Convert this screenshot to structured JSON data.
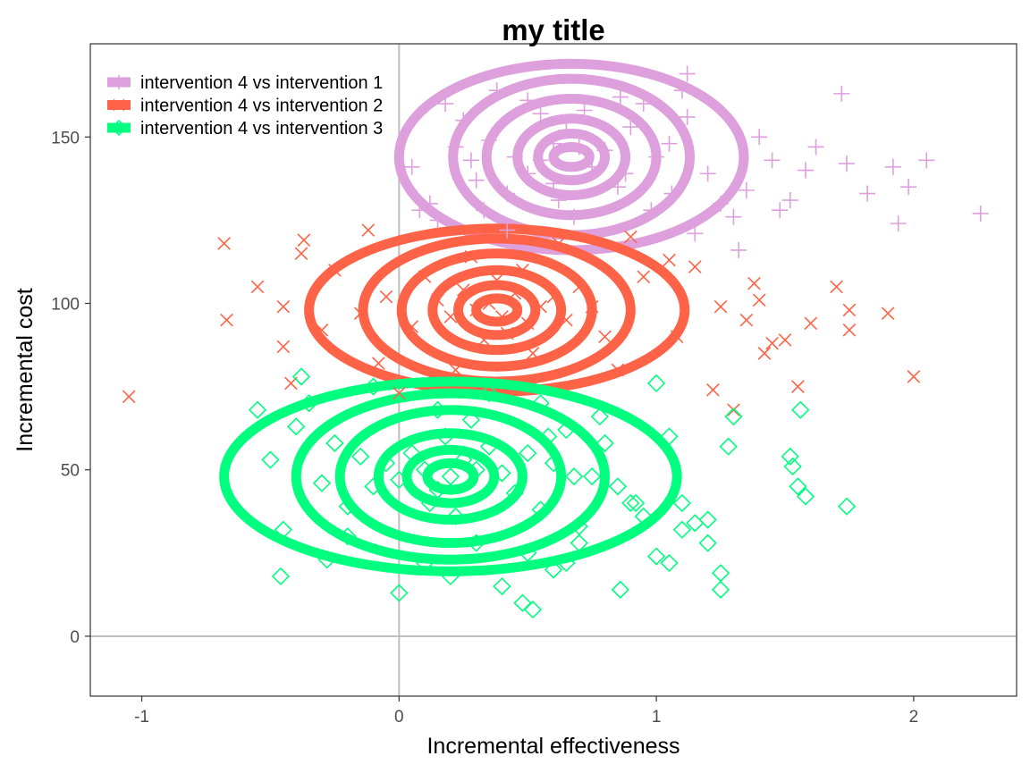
{
  "chart_data": {
    "type": "scatter",
    "title": "my title",
    "xlabel": "Incremental effectiveness",
    "ylabel": "Incremental cost",
    "xlim": [
      -1.2,
      2.4
    ],
    "ylim": [
      -18,
      178
    ],
    "xticks": [
      -1,
      0,
      1,
      2
    ],
    "yticks": [
      0,
      50,
      100,
      150
    ],
    "grid": false,
    "reference_lines": {
      "x": 0,
      "y": 0
    },
    "legend_position": "top-left",
    "series": [
      {
        "name": "intervention 4 vs intervention 1",
        "color": "#DDA0DD",
        "marker": "plus",
        "points": [
          [
            0.6,
            148
          ],
          [
            0.55,
            143
          ],
          [
            0.7,
            147
          ],
          [
            0.5,
            139
          ],
          [
            0.65,
            152
          ],
          [
            0.8,
            146
          ],
          [
            0.45,
            144
          ],
          [
            0.75,
            141
          ],
          [
            0.6,
            136
          ],
          [
            0.35,
            149
          ],
          [
            0.9,
            153
          ],
          [
            0.55,
            157
          ],
          [
            0.42,
            133
          ],
          [
            0.72,
            158
          ],
          [
            0.28,
            143
          ],
          [
            1.0,
            144
          ],
          [
            0.62,
            131
          ],
          [
            0.85,
            135
          ],
          [
            0.5,
            161
          ],
          [
            0.95,
            160
          ],
          [
            1.05,
            148
          ],
          [
            1.12,
            156
          ],
          [
            1.2,
            139
          ],
          [
            1.3,
            126
          ],
          [
            1.35,
            134
          ],
          [
            1.4,
            150
          ],
          [
            1.45,
            143
          ],
          [
            1.52,
            131
          ],
          [
            1.58,
            140
          ],
          [
            1.62,
            147
          ],
          [
            1.72,
            163
          ],
          [
            1.74,
            142
          ],
          [
            1.82,
            133
          ],
          [
            1.92,
            141
          ],
          [
            1.98,
            135
          ],
          [
            2.05,
            143
          ],
          [
            2.26,
            127
          ],
          [
            1.94,
            124
          ],
          [
            1.1,
            164
          ],
          [
            1.12,
            169
          ],
          [
            0.25,
            155
          ],
          [
            0.12,
            130
          ],
          [
            0.18,
            160
          ],
          [
            0.15,
            125
          ],
          [
            0.05,
            141
          ],
          [
            0.08,
            128
          ],
          [
            0.3,
            137
          ],
          [
            0.38,
            164
          ],
          [
            0.86,
            162
          ],
          [
            0.98,
            128
          ],
          [
            1.25,
            130
          ],
          [
            1.32,
            116
          ],
          [
            1.48,
            128
          ],
          [
            0.68,
            126
          ],
          [
            0.42,
            122
          ],
          [
            1.15,
            121
          ],
          [
            0.22,
            147
          ],
          [
            0.33,
            128
          ],
          [
            0.88,
            139
          ],
          [
            1.06,
            133
          ]
        ]
      },
      {
        "name": "intervention 4 vs intervention 2",
        "color": "#FF6347",
        "marker": "x",
        "points": [
          [
            0.35,
            100
          ],
          [
            0.4,
            96
          ],
          [
            0.45,
            103
          ],
          [
            0.3,
            98
          ],
          [
            0.5,
            94
          ],
          [
            0.25,
            104
          ],
          [
            0.38,
            107
          ],
          [
            0.55,
            99
          ],
          [
            0.42,
            91
          ],
          [
            0.2,
            96
          ],
          [
            0.6,
            102
          ],
          [
            0.15,
            101
          ],
          [
            0.48,
            110
          ],
          [
            0.33,
            89
          ],
          [
            0.65,
            95
          ],
          [
            0.1,
            108
          ],
          [
            0.7,
            105
          ],
          [
            0.05,
            93
          ],
          [
            0.75,
            99
          ],
          [
            0.28,
            114
          ],
          [
            0.52,
            85
          ],
          [
            -0.05,
            102
          ],
          [
            -0.15,
            97
          ],
          [
            -0.3,
            92
          ],
          [
            -0.45,
            99
          ],
          [
            -0.55,
            105
          ],
          [
            -0.67,
            95
          ],
          [
            -0.68,
            118
          ],
          [
            -0.37,
            119
          ],
          [
            -0.38,
            115
          ],
          [
            -0.45,
            87
          ],
          [
            -0.42,
            76
          ],
          [
            -0.12,
            122
          ],
          [
            -0.25,
            110
          ],
          [
            -0.08,
            82
          ],
          [
            0.9,
            120
          ],
          [
            1.05,
            113
          ],
          [
            1.15,
            111
          ],
          [
            1.25,
            99
          ],
          [
            1.38,
            106
          ],
          [
            1.4,
            101
          ],
          [
            1.45,
            88
          ],
          [
            1.5,
            89
          ],
          [
            1.6,
            94
          ],
          [
            1.7,
            105
          ],
          [
            1.75,
            98
          ],
          [
            1.75,
            92
          ],
          [
            1.55,
            75
          ],
          [
            1.42,
            85
          ],
          [
            1.9,
            97
          ],
          [
            2.0,
            78
          ],
          [
            1.22,
            74
          ],
          [
            1.3,
            68
          ],
          [
            -1.05,
            72
          ],
          [
            1.35,
            95
          ],
          [
            0.85,
            80
          ],
          [
            0.95,
            108
          ],
          [
            1.08,
            90
          ],
          [
            0.0,
            73
          ],
          [
            0.22,
            80
          ],
          [
            0.62,
            118
          ],
          [
            0.8,
            90
          ]
        ]
      },
      {
        "name": "intervention 4 vs intervention 3",
        "color": "#00FF7F",
        "marker": "diamond",
        "points": [
          [
            0.1,
            50
          ],
          [
            0.2,
            48
          ],
          [
            0.05,
            55
          ],
          [
            0.15,
            44
          ],
          [
            0.25,
            53
          ],
          [
            0.0,
            47
          ],
          [
            0.3,
            50
          ],
          [
            -0.05,
            52
          ],
          [
            0.12,
            40
          ],
          [
            0.35,
            57
          ],
          [
            -0.1,
            45
          ],
          [
            0.4,
            49
          ],
          [
            0.18,
            60
          ],
          [
            -0.15,
            54
          ],
          [
            0.45,
            43
          ],
          [
            0.22,
            36
          ],
          [
            0.5,
            55
          ],
          [
            -0.2,
            39
          ],
          [
            0.28,
            65
          ],
          [
            -0.25,
            58
          ],
          [
            0.55,
            38
          ],
          [
            0.6,
            52
          ],
          [
            -0.3,
            46
          ],
          [
            0.65,
            62
          ],
          [
            -0.35,
            70
          ],
          [
            0.7,
            33
          ],
          [
            -0.4,
            63
          ],
          [
            0.75,
            48
          ],
          [
            -0.45,
            32
          ],
          [
            0.8,
            58
          ],
          [
            0.85,
            45
          ],
          [
            -0.5,
            53
          ],
          [
            0.9,
            40
          ],
          [
            0.1,
            22
          ],
          [
            0.2,
            18
          ],
          [
            0.3,
            28
          ],
          [
            0.4,
            15
          ],
          [
            0.5,
            25
          ],
          [
            0.6,
            20
          ],
          [
            0.7,
            28
          ],
          [
            0.0,
            13
          ],
          [
            0.15,
            68
          ],
          [
            0.35,
            73
          ],
          [
            0.55,
            70
          ],
          [
            -0.1,
            75
          ],
          [
            1.0,
            76
          ],
          [
            1.05,
            60
          ],
          [
            1.1,
            40
          ],
          [
            1.15,
            34
          ],
          [
            1.2,
            28
          ],
          [
            1.25,
            19
          ],
          [
            1.25,
            14
          ],
          [
            1.28,
            57
          ],
          [
            1.3,
            66
          ],
          [
            1.0,
            24
          ],
          [
            1.05,
            22
          ],
          [
            0.95,
            36
          ],
          [
            1.52,
            54
          ],
          [
            1.53,
            51
          ],
          [
            1.55,
            45
          ],
          [
            1.58,
            42
          ],
          [
            1.56,
            68
          ],
          [
            1.74,
            39
          ],
          [
            -0.55,
            68
          ],
          [
            -0.46,
            18
          ],
          [
            -0.38,
            78
          ],
          [
            0.48,
            10
          ],
          [
            0.52,
            8
          ],
          [
            0.65,
            22
          ],
          [
            -0.28,
            23
          ],
          [
            0.86,
            14
          ],
          [
            0.92,
            40
          ],
          [
            -0.2,
            30
          ],
          [
            0.58,
            60
          ],
          [
            0.68,
            48
          ],
          [
            0.78,
            66
          ],
          [
            1.1,
            32
          ],
          [
            1.2,
            35
          ]
        ]
      }
    ],
    "contours": [
      {
        "series": "intervention 4 vs intervention 1",
        "center": [
          0.67,
          144
        ],
        "radii": [
          [
            0.07,
            3
          ],
          [
            0.13,
            7
          ],
          [
            0.21,
            11.5
          ],
          [
            0.33,
            17.5
          ],
          [
            0.46,
            23.5
          ],
          [
            0.67,
            28
          ]
        ]
      },
      {
        "series": "intervention 4 vs intervention 2",
        "center": [
          0.38,
          98
        ],
        "radii": [
          [
            0.08,
            3.5
          ],
          [
            0.15,
            7.5
          ],
          [
            0.25,
            12
          ],
          [
            0.37,
            17
          ],
          [
            0.52,
            21.5
          ],
          [
            0.73,
            24.5
          ]
        ]
      },
      {
        "series": "intervention 4 vs intervention 3",
        "center": [
          0.2,
          48
        ],
        "radii": [
          [
            0.09,
            4
          ],
          [
            0.17,
            8
          ],
          [
            0.28,
            13
          ],
          [
            0.43,
            20
          ],
          [
            0.6,
            25
          ],
          [
            0.88,
            28.5
          ]
        ]
      }
    ]
  }
}
